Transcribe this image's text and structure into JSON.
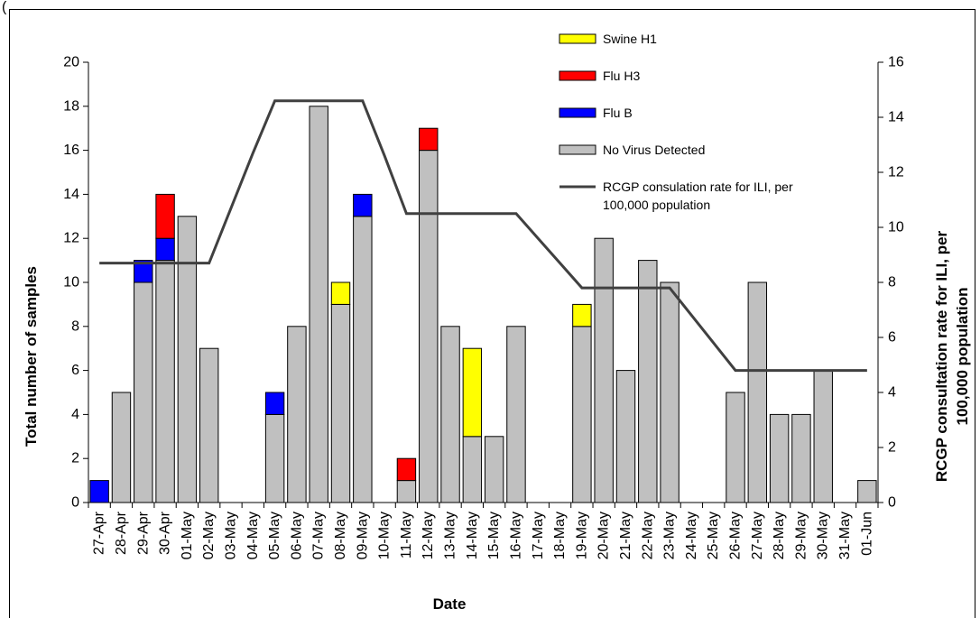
{
  "chart_data": {
    "type": "bar",
    "stacked": true,
    "top_cut_text": "(",
    "categories": [
      "27-Apr",
      "28-Apr",
      "29-Apr",
      "30-Apr",
      "01-May",
      "02-May",
      "03-May",
      "04-May",
      "05-May",
      "06-May",
      "07-May",
      "08-May",
      "09-May",
      "10-May",
      "11-May",
      "12-May",
      "13-May",
      "14-May",
      "15-May",
      "16-May",
      "17-May",
      "18-May",
      "19-May",
      "20-May",
      "21-May",
      "22-May",
      "23-May",
      "24-May",
      "25-May",
      "26-May",
      "27-May",
      "28-May",
      "29-May",
      "30-May",
      "31-May",
      "01-Jun"
    ],
    "series": [
      {
        "name": "No Virus Detected",
        "color": "#c0c0c0",
        "values": [
          0,
          5,
          10,
          11,
          13,
          7,
          0,
          0,
          4,
          8,
          18,
          9,
          13,
          0,
          1,
          16,
          8,
          3,
          3,
          8,
          0,
          0,
          8,
          12,
          6,
          11,
          10,
          0,
          0,
          5,
          10,
          4,
          4,
          6,
          0,
          1
        ]
      },
      {
        "name": "Flu B",
        "color": "#0000ff",
        "values": [
          1,
          0,
          1,
          1,
          0,
          0,
          0,
          0,
          1,
          0,
          0,
          0,
          1,
          0,
          0,
          0,
          0,
          0,
          0,
          0,
          0,
          0,
          0,
          0,
          0,
          0,
          0,
          0,
          0,
          0,
          0,
          0,
          0,
          0,
          0,
          0
        ]
      },
      {
        "name": "Flu H3",
        "color": "#ff0000",
        "values": [
          0,
          0,
          0,
          2,
          0,
          0,
          0,
          0,
          0,
          0,
          0,
          0,
          0,
          0,
          1,
          1,
          0,
          0,
          0,
          0,
          0,
          0,
          0,
          0,
          0,
          0,
          0,
          0,
          0,
          0,
          0,
          0,
          0,
          0,
          0,
          0
        ]
      },
      {
        "name": "Swine H1",
        "color": "#ffff00",
        "values": [
          0,
          0,
          0,
          0,
          0,
          0,
          0,
          0,
          0,
          0,
          0,
          1,
          0,
          0,
          0,
          0,
          0,
          4,
          0,
          0,
          0,
          0,
          1,
          0,
          0,
          0,
          0,
          0,
          0,
          0,
          0,
          0,
          0,
          0,
          0,
          0
        ]
      }
    ],
    "line_series": {
      "name": "RCGP consulation rate for ILI, per 100,000 population",
      "color": "#404040",
      "values": [
        8.7,
        8.7,
        8.7,
        8.7,
        8.7,
        8.7,
        10.7,
        12.7,
        14.6,
        14.6,
        14.6,
        14.6,
        14.6,
        12.6,
        10.5,
        10.5,
        10.5,
        10.5,
        10.5,
        10.5,
        9.6,
        8.7,
        7.8,
        7.8,
        7.8,
        7.8,
        7.8,
        6.8,
        5.8,
        4.8,
        4.8,
        4.8,
        4.8,
        4.8,
        4.8,
        4.8
      ]
    },
    "legend_order": [
      "Swine H1",
      "Flu H3",
      "Flu B",
      "No Virus Detected",
      "RCGP consulation rate for ILI, per 100,000 population"
    ],
    "legend_placement": "top-center",
    "xlabel": "Date",
    "ylabel": "Total number of samples",
    "y2label": "RCGP consultation rate for ILI, per 100,000 population",
    "ylim": [
      0,
      20
    ],
    "yticks": [
      0,
      2,
      4,
      6,
      8,
      10,
      12,
      14,
      16,
      18,
      20
    ],
    "y2lim": [
      0,
      16
    ],
    "y2ticks": [
      0,
      2,
      4,
      6,
      8,
      10,
      12,
      14,
      16
    ],
    "grid": false
  }
}
